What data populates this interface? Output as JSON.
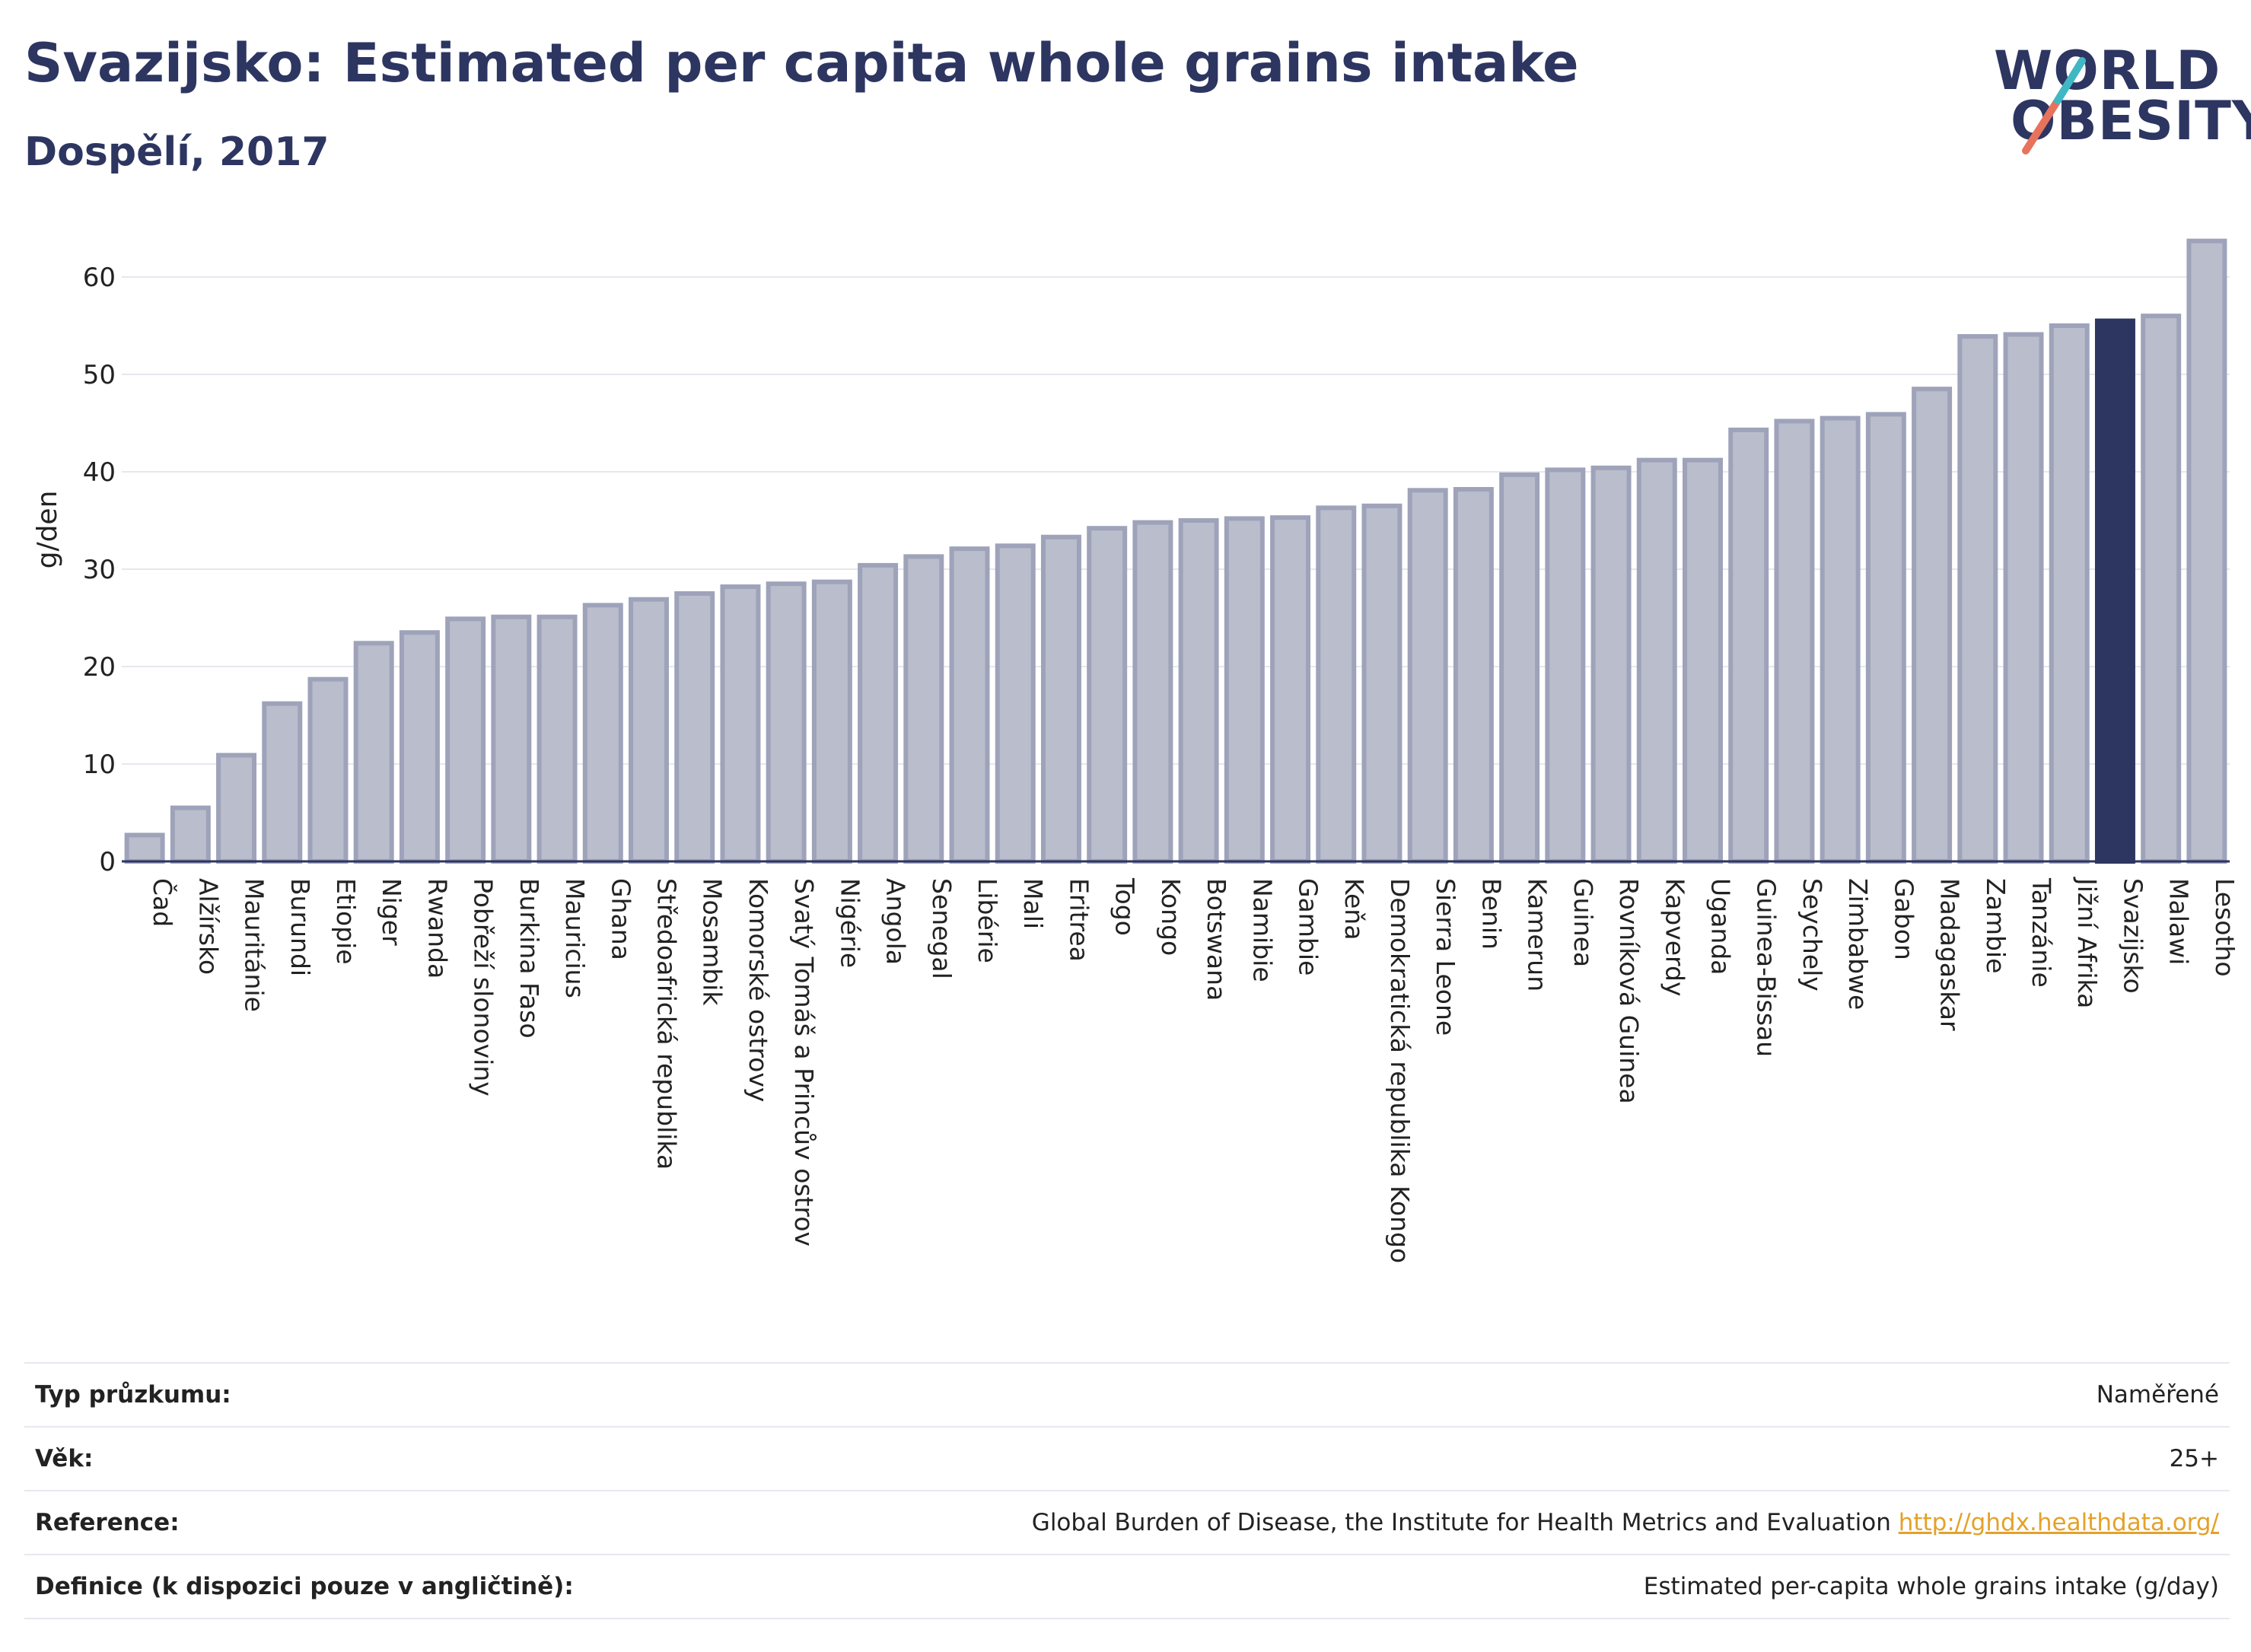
{
  "header": {
    "title": "Svazijsko: Estimated per capita whole grains intake",
    "subtitle": "Dospělí, 2017"
  },
  "logo": {
    "line1": "WORLD",
    "line2": "OBESITY",
    "colors": {
      "text": "#2d3561",
      "teal": "#3fb8c4",
      "coral": "#e8735c"
    }
  },
  "chart_data": {
    "type": "bar",
    "ylabel": "g/den",
    "ylim": [
      0,
      65
    ],
    "yticks": [
      0,
      10,
      20,
      30,
      40,
      50,
      60
    ],
    "grid": true,
    "highlight": "Svazijsko",
    "colors": {
      "bar": "#b9bdcc",
      "bar_border": "#9ea3ba",
      "highlight": "#2d3561"
    },
    "categories": [
      "Čad",
      "Alžírsko",
      "Mauritánie",
      "Burundi",
      "Etiopie",
      "Niger",
      "Rwanda",
      "Pobřeží slonoviny",
      "Burkina Faso",
      "Mauricius",
      "Ghana",
      "Středoafrická republika",
      "Mosambik",
      "Komorské ostrovy",
      "Svatý Tomáš a Princův ostrov",
      "Nigérie",
      "Angola",
      "Senegal",
      "Libérie",
      "Mali",
      "Eritrea",
      "Togo",
      "Kongo",
      "Botswana",
      "Namibie",
      "Gambie",
      "Keňa",
      "Demokratická republika Kongo",
      "Sierra Leone",
      "Benin",
      "Kamerun",
      "Guinea",
      "Rovníková Guinea",
      "Kapverdy",
      "Uganda",
      "Guinea-Bissau",
      "Seychely",
      "Zimbabwe",
      "Gabon",
      "Madagaskar",
      "Zambie",
      "Tanzánie",
      "Jižní Afrika",
      "Svazijsko",
      "Malawi",
      "Lesotho"
    ],
    "values": [
      2.7,
      5.5,
      10.9,
      16.2,
      18.7,
      22.4,
      23.5,
      24.9,
      25.1,
      25.1,
      26.3,
      26.9,
      27.5,
      28.2,
      28.5,
      28.7,
      30.4,
      31.3,
      32.1,
      32.4,
      33.3,
      34.2,
      34.8,
      35.0,
      35.2,
      35.3,
      36.3,
      36.5,
      38.1,
      38.2,
      39.7,
      40.2,
      40.4,
      41.2,
      41.2,
      44.3,
      45.2,
      45.5,
      45.9,
      48.5,
      53.9,
      54.1,
      55.0,
      55.5,
      56.0,
      63.7
    ]
  },
  "info": {
    "rows": [
      {
        "label": "Typ průzkumu:",
        "value": "Naměřené"
      },
      {
        "label": "Věk:",
        "value": "25+"
      },
      {
        "label": "Reference:",
        "value": "Global Burden of Disease, the Institute for Health Metrics and Evaluation",
        "link": "http://ghdx.healthdata.org/"
      },
      {
        "label": "Definice (k dispozici pouze v angličtině):",
        "value": "Estimated per-capita whole grains intake (g/day)"
      }
    ]
  }
}
